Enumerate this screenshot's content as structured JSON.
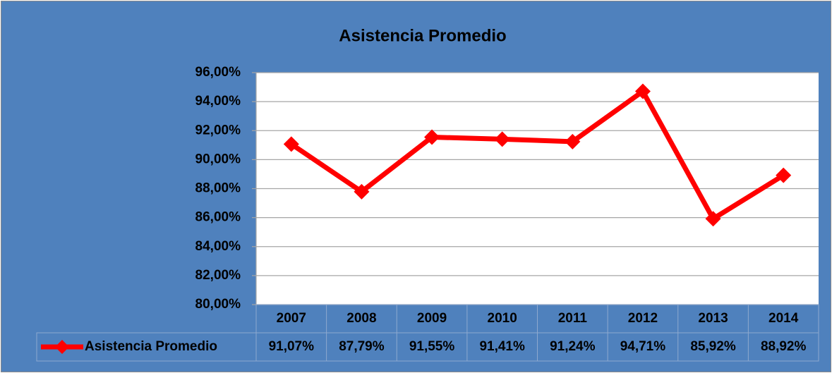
{
  "chart_data": {
    "type": "line",
    "title": "Asistencia Promedio",
    "categories": [
      "2007",
      "2008",
      "2009",
      "2010",
      "2011",
      "2012",
      "2013",
      "2014"
    ],
    "series": [
      {
        "name": "Asistencia Promedio",
        "color": "#ff0000",
        "values": [
          91.07,
          87.79,
          91.55,
          91.41,
          91.24,
          94.71,
          85.92,
          88.92
        ],
        "value_labels": [
          "91,07%",
          "87,79%",
          "91,55%",
          "91,41%",
          "91,24%",
          "94,71%",
          "85,92%",
          "88,92%"
        ]
      }
    ],
    "ylim": [
      80,
      96
    ],
    "yticks": [
      {
        "value": 80,
        "label": "80,00%"
      },
      {
        "value": 82,
        "label": "82,00%"
      },
      {
        "value": 84,
        "label": "84,00%"
      },
      {
        "value": 86,
        "label": "86,00%"
      },
      {
        "value": 88,
        "label": "88,00%"
      },
      {
        "value": 90,
        "label": "90,00%"
      },
      {
        "value": 92,
        "label": "92,00%"
      },
      {
        "value": 94,
        "label": "94,00%"
      },
      {
        "value": 96,
        "label": "96,00%"
      }
    ],
    "grid": true,
    "data_table": true
  }
}
